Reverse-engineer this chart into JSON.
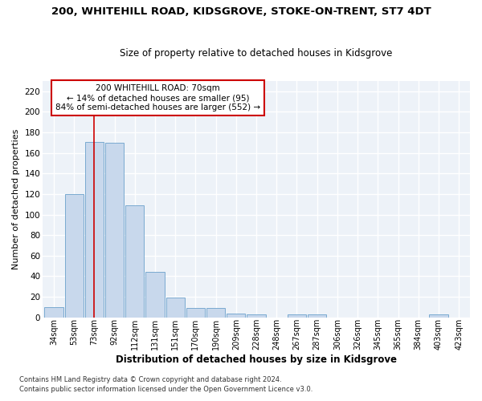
{
  "title": "200, WHITEHILL ROAD, KIDSGROVE, STOKE-ON-TRENT, ST7 4DT",
  "subtitle": "Size of property relative to detached houses in Kidsgrove",
  "xlabel_bottom": "Distribution of detached houses by size in Kidsgrove",
  "ylabel": "Number of detached properties",
  "categories": [
    "34sqm",
    "53sqm",
    "73sqm",
    "92sqm",
    "112sqm",
    "131sqm",
    "151sqm",
    "170sqm",
    "190sqm",
    "209sqm",
    "228sqm",
    "248sqm",
    "267sqm",
    "287sqm",
    "306sqm",
    "326sqm",
    "345sqm",
    "365sqm",
    "384sqm",
    "403sqm",
    "423sqm"
  ],
  "values": [
    10,
    120,
    171,
    170,
    109,
    44,
    19,
    9,
    9,
    4,
    3,
    0,
    3,
    3,
    0,
    0,
    0,
    0,
    0,
    3,
    0
  ],
  "bar_color": "#c8d8ec",
  "bar_edge_color": "#7aaad0",
  "vline_color": "#cc0000",
  "vline_x": 2.0,
  "annotation_text": "200 WHITEHILL ROAD: 70sqm\n← 14% of detached houses are smaller (95)\n84% of semi-detached houses are larger (552) →",
  "ylim": [
    0,
    230
  ],
  "yticks": [
    0,
    20,
    40,
    60,
    80,
    100,
    120,
    140,
    160,
    180,
    200,
    220
  ],
  "footer1": "Contains HM Land Registry data © Crown copyright and database right 2024.",
  "footer2": "Contains public sector information licensed under the Open Government Licence v3.0.",
  "bg_color": "#edf2f8",
  "grid_color": "#ffffff",
  "fig_bg": "#ffffff",
  "title_fontsize": 9.5,
  "subtitle_fontsize": 8.5,
  "ylabel_fontsize": 8.0,
  "xtick_fontsize": 7.0,
  "ytick_fontsize": 7.5,
  "xlabel_fontsize": 8.5,
  "footer_fontsize": 6.0,
  "annot_fontsize": 7.5
}
